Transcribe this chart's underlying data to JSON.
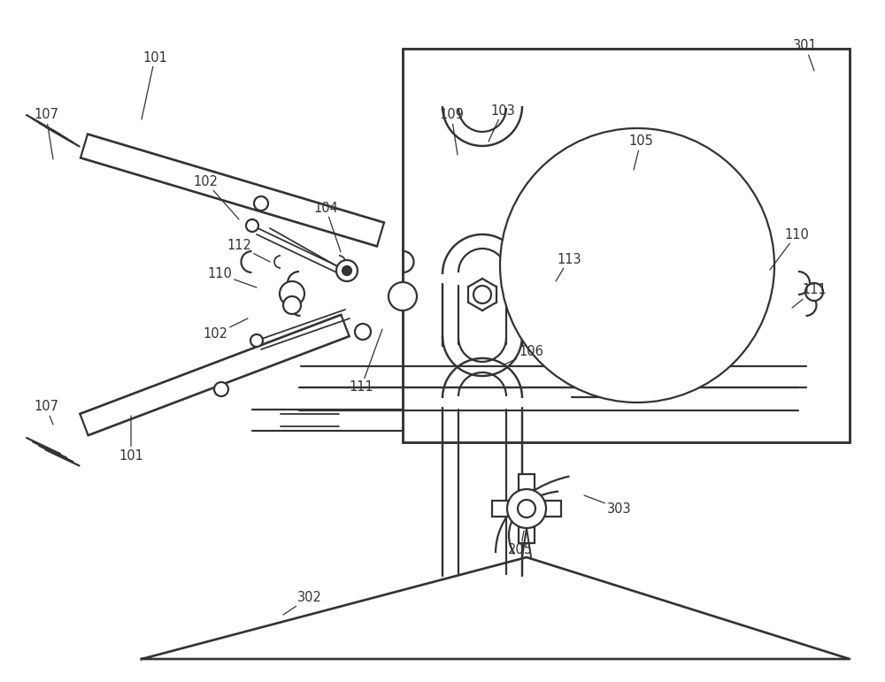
{
  "bg": "#ffffff",
  "lc": "#333333",
  "lw": 1.6,
  "fig_w": 10.0,
  "fig_h": 7.71
}
